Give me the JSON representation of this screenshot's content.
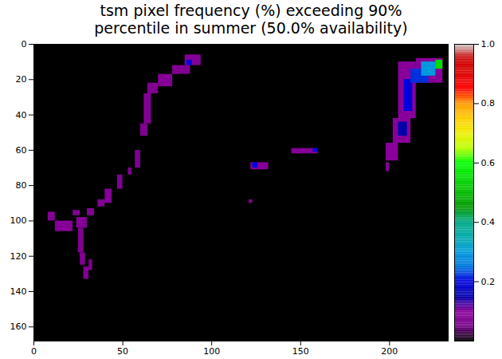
{
  "chart_data": {
    "type": "heatmap",
    "title": "tsm pixel frequency (%) exceeding 90%\npercentile in summer (50.0% availability)",
    "xlim": [
      0,
      233
    ],
    "ylim": [
      0,
      168
    ],
    "xticks": [
      0,
      50,
      100,
      150,
      200
    ],
    "yticks": [
      0,
      20,
      40,
      60,
      80,
      100,
      120,
      140,
      160
    ],
    "colorbar": {
      "range": [
        0,
        1
      ],
      "ticks": [
        0.2,
        0.4,
        0.6,
        0.8,
        {
          "value": 1,
          "label": "1.0"
        }
      ]
    },
    "cells": [
      {
        "x0": 0,
        "x1": 233,
        "y0": 0,
        "y1": 168,
        "value": 0
      },
      {
        "x0": 85,
        "x1": 94,
        "y0": 6,
        "y1": 12,
        "value": 0.09
      },
      {
        "x0": 78,
        "x1": 88,
        "y0": 12,
        "y1": 17,
        "value": 0.08
      },
      {
        "x0": 70,
        "x1": 78,
        "y0": 17,
        "y1": 24,
        "value": 0.09
      },
      {
        "x0": 64,
        "x1": 70,
        "y0": 22,
        "y1": 28,
        "value": 0.08
      },
      {
        "x0": 62,
        "x1": 66,
        "y0": 28,
        "y1": 45,
        "value": 0.09
      },
      {
        "x0": 60,
        "x1": 64,
        "y0": 45,
        "y1": 52,
        "value": 0.08
      },
      {
        "x0": 57,
        "x1": 60,
        "y0": 60,
        "y1": 70,
        "value": 0.08
      },
      {
        "x0": 53,
        "x1": 55,
        "y0": 70,
        "y1": 74,
        "value": 0.08
      },
      {
        "x0": 47,
        "x1": 50,
        "y0": 74,
        "y1": 82,
        "value": 0.08
      },
      {
        "x0": 40,
        "x1": 44,
        "y0": 82,
        "y1": 90,
        "value": 0.09
      },
      {
        "x0": 36,
        "x1": 40,
        "y0": 88,
        "y1": 92,
        "value": 0.08
      },
      {
        "x0": 30,
        "x1": 34,
        "y0": 93,
        "y1": 97,
        "value": 0.09
      },
      {
        "x0": 22,
        "x1": 26,
        "y0": 94,
        "y1": 97,
        "value": 0.08
      },
      {
        "x0": 8,
        "x1": 12,
        "y0": 95,
        "y1": 100,
        "value": 0.09
      },
      {
        "x0": 12,
        "x1": 22,
        "y0": 100,
        "y1": 106,
        "value": 0.09
      },
      {
        "x0": 24,
        "x1": 30,
        "y0": 98,
        "y1": 104,
        "value": 0.09
      },
      {
        "x0": 25,
        "x1": 28,
        "y0": 104,
        "y1": 118,
        "value": 0.08
      },
      {
        "x0": 26,
        "x1": 29,
        "y0": 118,
        "y1": 125,
        "value": 0.08
      },
      {
        "x0": 28,
        "x1": 31,
        "y0": 126,
        "y1": 133,
        "value": 0.08
      },
      {
        "x0": 31,
        "x1": 33,
        "y0": 122,
        "y1": 128,
        "value": 0.08
      },
      {
        "x0": 122,
        "x1": 132,
        "y0": 67,
        "y1": 71,
        "value": 0.09
      },
      {
        "x0": 145,
        "x1": 160,
        "y0": 59,
        "y1": 62,
        "value": 0.09
      },
      {
        "x0": 121,
        "x1": 123,
        "y0": 88,
        "y1": 90,
        "value": 0.08
      },
      {
        "x0": 205,
        "x1": 215,
        "y0": 10,
        "y1": 42,
        "value": 0.1
      },
      {
        "x0": 215,
        "x1": 230,
        "y0": 8,
        "y1": 22,
        "value": 0.1
      },
      {
        "x0": 202,
        "x1": 212,
        "y0": 42,
        "y1": 56,
        "value": 0.1
      },
      {
        "x0": 198,
        "x1": 205,
        "y0": 56,
        "y1": 66,
        "value": 0.1
      },
      {
        "x0": 198,
        "x1": 200,
        "y0": 67,
        "y1": 72,
        "value": 0.08
      },
      {
        "x0": 205,
        "x1": 210,
        "y0": 44,
        "y1": 52,
        "value": 0.15
      },
      {
        "x0": 208,
        "x1": 213,
        "y0": 20,
        "y1": 38,
        "value": 0.2
      },
      {
        "x0": 212,
        "x1": 222,
        "y0": 14,
        "y1": 22,
        "value": 0.22
      },
      {
        "x0": 218,
        "x1": 226,
        "y0": 10,
        "y1": 18,
        "value": 0.3
      },
      {
        "x0": 226,
        "x1": 230,
        "y0": 9,
        "y1": 14,
        "value": 0.55
      },
      {
        "x0": 86,
        "x1": 89,
        "y0": 9,
        "y1": 12,
        "value": 0.2
      },
      {
        "x0": 123,
        "x1": 126,
        "y0": 67,
        "y1": 70,
        "value": 0.2
      },
      {
        "x0": 157,
        "x1": 160,
        "y0": 59,
        "y1": 61,
        "value": 0.2
      }
    ]
  }
}
